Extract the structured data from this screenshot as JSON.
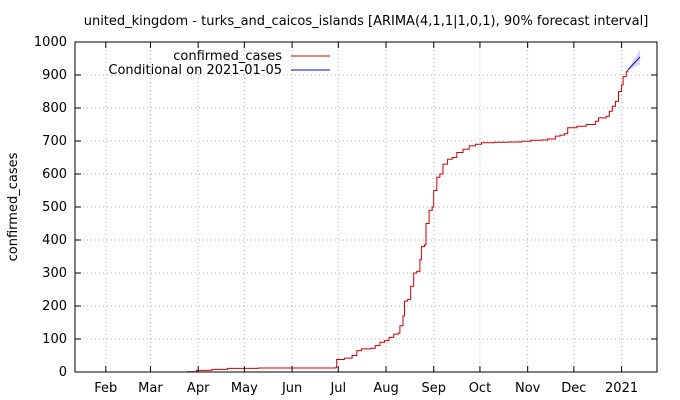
{
  "chart_data": {
    "type": "line",
    "title": "united_kingdom - turks_and_caicos_islands [ARIMA(4,1,1|1,0,1), 90% forecast interval]",
    "xlabel": "",
    "ylabel": "confirmed_cases",
    "ylim": [
      0,
      1000
    ],
    "y_ticks": [
      0,
      100,
      200,
      300,
      400,
      500,
      600,
      700,
      800,
      900,
      1000
    ],
    "x_range": [
      "2020-01-12",
      "2021-01-24"
    ],
    "x_ticks": [
      {
        "label": "Feb",
        "date": "2020-02-01"
      },
      {
        "label": "Mar",
        "date": "2020-03-01"
      },
      {
        "label": "Apr",
        "date": "2020-04-01"
      },
      {
        "label": "May",
        "date": "2020-05-01"
      },
      {
        "label": "Jun",
        "date": "2020-06-01"
      },
      {
        "label": "Jul",
        "date": "2020-07-01"
      },
      {
        "label": "Aug",
        "date": "2020-08-01"
      },
      {
        "label": "Sep",
        "date": "2020-09-01"
      },
      {
        "label": "Oct",
        "date": "2020-10-01"
      },
      {
        "label": "Nov",
        "date": "2020-11-01"
      },
      {
        "label": "Dec",
        "date": "2020-12-01"
      },
      {
        "label": "2021",
        "date": "2021-01-01"
      }
    ],
    "grid": true,
    "legend_position": "top-left",
    "series": [
      {
        "name": "confirmed_cases",
        "color": "#cc0000",
        "points": [
          [
            "2020-03-24",
            0
          ],
          [
            "2020-03-25",
            1
          ],
          [
            "2020-03-31",
            5
          ],
          [
            "2020-04-10",
            8
          ],
          [
            "2020-04-20",
            11
          ],
          [
            "2020-05-10",
            12
          ],
          [
            "2020-06-01",
            12
          ],
          [
            "2020-06-25",
            12
          ],
          [
            "2020-06-29",
            13
          ],
          [
            "2020-06-30",
            38
          ],
          [
            "2020-07-05",
            42
          ],
          [
            "2020-07-10",
            50
          ],
          [
            "2020-07-13",
            65
          ],
          [
            "2020-07-16",
            70
          ],
          [
            "2020-07-22",
            72
          ],
          [
            "2020-07-25",
            80
          ],
          [
            "2020-07-28",
            90
          ],
          [
            "2020-07-31",
            95
          ],
          [
            "2020-08-03",
            105
          ],
          [
            "2020-08-06",
            115
          ],
          [
            "2020-08-09",
            118
          ],
          [
            "2020-08-10",
            140
          ],
          [
            "2020-08-12",
            170
          ],
          [
            "2020-08-13",
            215
          ],
          [
            "2020-08-15",
            220
          ],
          [
            "2020-08-17",
            260
          ],
          [
            "2020-08-19",
            300
          ],
          [
            "2020-08-21",
            305
          ],
          [
            "2020-08-23",
            340
          ],
          [
            "2020-08-24",
            380
          ],
          [
            "2020-08-26",
            385
          ],
          [
            "2020-08-27",
            450
          ],
          [
            "2020-08-29",
            490
          ],
          [
            "2020-08-31",
            500
          ],
          [
            "2020-09-01",
            550
          ],
          [
            "2020-09-03",
            590
          ],
          [
            "2020-09-05",
            600
          ],
          [
            "2020-09-07",
            630
          ],
          [
            "2020-09-10",
            645
          ],
          [
            "2020-09-13",
            650
          ],
          [
            "2020-09-16",
            665
          ],
          [
            "2020-09-20",
            675
          ],
          [
            "2020-09-24",
            685
          ],
          [
            "2020-09-28",
            690
          ],
          [
            "2020-10-02",
            695
          ],
          [
            "2020-10-10",
            696
          ],
          [
            "2020-10-20",
            697
          ],
          [
            "2020-10-28",
            699
          ],
          [
            "2020-11-03",
            702
          ],
          [
            "2020-11-10",
            703
          ],
          [
            "2020-11-14",
            706
          ],
          [
            "2020-11-19",
            715
          ],
          [
            "2020-11-22",
            718
          ],
          [
            "2020-11-25",
            722
          ],
          [
            "2020-11-27",
            740
          ],
          [
            "2020-12-03",
            745
          ],
          [
            "2020-12-09",
            750
          ],
          [
            "2020-12-15",
            760
          ],
          [
            "2020-12-17",
            770
          ],
          [
            "2020-12-22",
            775
          ],
          [
            "2020-12-24",
            790
          ],
          [
            "2020-12-26",
            805
          ],
          [
            "2020-12-28",
            820
          ],
          [
            "2020-12-30",
            850
          ],
          [
            "2021-01-01",
            870
          ],
          [
            "2021-01-02",
            895
          ],
          [
            "2021-01-04",
            910
          ],
          [
            "2021-01-05",
            915
          ]
        ]
      },
      {
        "name": "Conditional on 2021-01-05",
        "color": "#0000cc",
        "points": [
          [
            "2021-01-05",
            915
          ],
          [
            "2021-01-07",
            925
          ],
          [
            "2021-01-09",
            935
          ],
          [
            "2021-01-11",
            945
          ],
          [
            "2021-01-13",
            955
          ]
        ],
        "interval_90": {
          "lower": [
            915,
            918,
            922,
            928,
            932
          ],
          "upper": [
            915,
            932,
            948,
            962,
            978
          ]
        }
      }
    ]
  }
}
